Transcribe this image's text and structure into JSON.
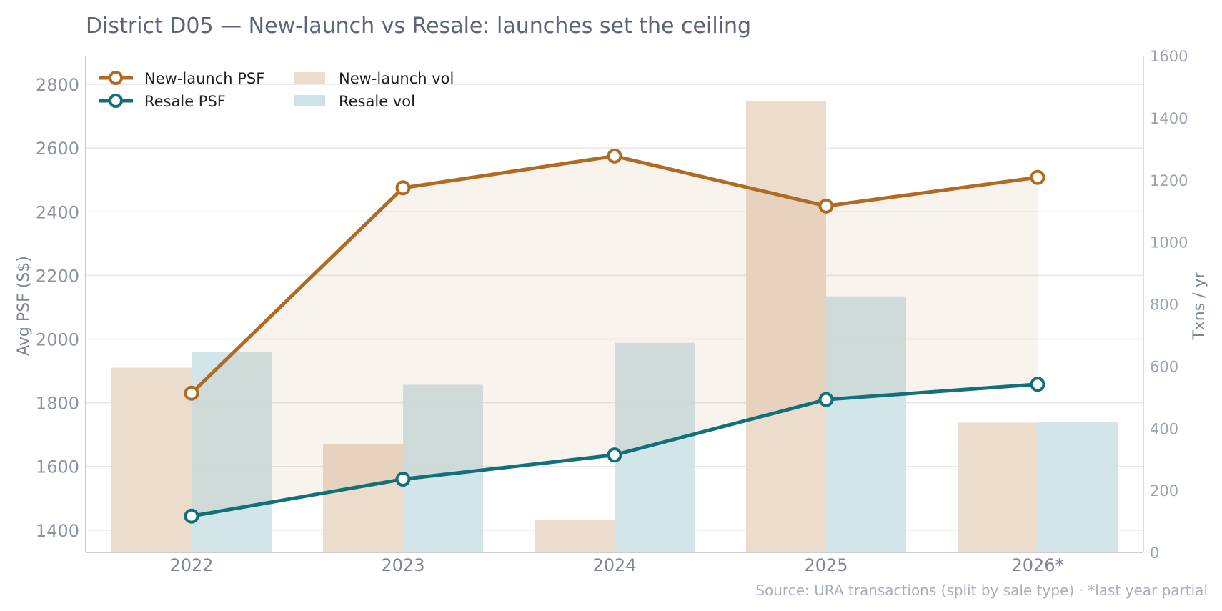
{
  "chart_data": {
    "type": "bar",
    "title": "District D05 — New-launch vs Resale: launches set the ceiling",
    "categories": [
      "2022",
      "2023",
      "2024",
      "2025",
      "2026*"
    ],
    "ylabel": "Avg PSF (S$)",
    "y2label": "Txns / yr",
    "ylim": [
      1330,
      2890
    ],
    "y2lim": [
      0,
      1600
    ],
    "yticks": [
      "1400",
      "1600",
      "1800",
      "2000",
      "2200",
      "2400",
      "2600",
      "2800"
    ],
    "y2ticks": [
      "0",
      "200",
      "400",
      "600",
      "800",
      "1000",
      "1200",
      "1400",
      "1600"
    ],
    "grid": true,
    "legend_position": "top-left",
    "series": [
      {
        "name": "New-launch PSF",
        "kind": "line",
        "axis": "left",
        "color": "#b06a22",
        "values": [
          1830,
          2475,
          2575,
          2418,
          2508
        ]
      },
      {
        "name": "Resale PSF",
        "kind": "line",
        "axis": "left",
        "color": "#12707a",
        "values": [
          1444,
          1560,
          1636,
          1810,
          1858
        ]
      },
      {
        "name": "New-launch vol",
        "kind": "bar",
        "axis": "right",
        "color": "#ecdccb",
        "values": [
          595,
          350,
          105,
          1455,
          418
        ]
      },
      {
        "name": "Resale vol",
        "kind": "bar",
        "axis": "right",
        "color": "#cde2e5",
        "values": [
          645,
          540,
          675,
          825,
          420
        ]
      }
    ],
    "source": "Source: URA transactions (split by sale type) · *last year partial"
  }
}
